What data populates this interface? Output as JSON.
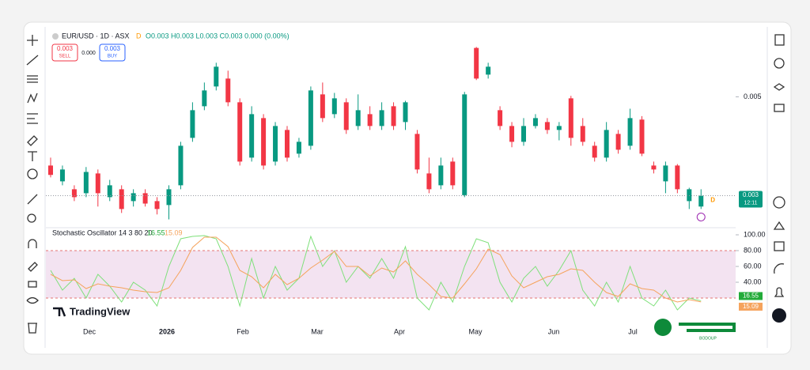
{
  "header": {
    "symbol": "EUR/USD · 1D · ASX",
    "flag": "D",
    "ohlc": "O0.003 H0.003 L0.003 C0.003 0.000 (0.00%)",
    "sell_price": "0.003",
    "sell": "SELL",
    "spread": "0.000",
    "buy_price": "0.003",
    "buy": "BUY"
  },
  "brand": "TradingView",
  "watermark": "BODOUP",
  "chart_data": [
    {
      "type": "candlestick",
      "up_color": "#089981",
      "down_color": "#f23645",
      "open": [
        0.00361,
        0.00329,
        0.00313,
        0.00305,
        0.00345,
        0.00297,
        0.00313,
        0.00289,
        0.00305,
        0.00289,
        0.00281,
        0.00321,
        0.00417,
        0.00481,
        0.00521,
        0.00537,
        0.00489,
        0.00377,
        0.00457,
        0.00369,
        0.00433,
        0.00385,
        0.00401,
        0.00505,
        0.00465,
        0.00489,
        0.00441,
        0.00465,
        0.00441,
        0.00481,
        0.00449,
        0.00425,
        0.00345,
        0.00321,
        0.00369,
        0.00301,
        0.00599,
        0.00545,
        0.00473,
        0.00441,
        0.00409,
        0.00441,
        0.00449,
        0.00433,
        0.00497,
        0.00441,
        0.00401,
        0.00377,
        0.00425,
        0.00401,
        0.00454,
        0.00361,
        0.00329,
        0.00361,
        0.00289,
        0.00278
      ],
      "high": [
        0.00377,
        0.00361,
        0.00321,
        0.00358,
        0.00353,
        0.00332,
        0.00321,
        0.00313,
        0.00313,
        0.00297,
        0.00321,
        0.00409,
        0.00489,
        0.00529,
        0.00569,
        0.00553,
        0.00497,
        0.00481,
        0.00465,
        0.00449,
        0.00441,
        0.00417,
        0.00521,
        0.00529,
        0.00508,
        0.00497,
        0.00505,
        0.00481,
        0.00489,
        0.00489,
        0.00492,
        0.00433,
        0.00377,
        0.00377,
        0.00377,
        0.0051,
        0.00601,
        0.00569,
        0.00481,
        0.00449,
        0.00457,
        0.00465,
        0.00457,
        0.00449,
        0.00502,
        0.00457,
        0.00409,
        0.00449,
        0.00433,
        0.00476,
        0.00461,
        0.00369,
        0.00369,
        0.00364,
        0.00316,
        0.00313
      ],
      "low": [
        0.00337,
        0.00321,
        0.00289,
        0.00297,
        0.00278,
        0.00289,
        0.00265,
        0.00278,
        0.00278,
        0.00262,
        0.00252,
        0.00313,
        0.00409,
        0.00473,
        0.00513,
        0.00481,
        0.00361,
        0.00369,
        0.00353,
        0.00361,
        0.00369,
        0.00377,
        0.00393,
        0.00449,
        0.00457,
        0.00425,
        0.00433,
        0.00433,
        0.00433,
        0.00433,
        0.00433,
        0.00345,
        0.00305,
        0.00313,
        0.00313,
        0.00297,
        0.00534,
        0.00537,
        0.00433,
        0.00398,
        0.00401,
        0.00436,
        0.00425,
        0.00412,
        0.00401,
        0.00401,
        0.00369,
        0.00369,
        0.00385,
        0.00393,
        0.0038,
        0.00345,
        0.00305,
        0.00305,
        0.00273,
        0.00273
      ],
      "close": [
        0.00342,
        0.00353,
        0.00297,
        0.00348,
        0.00305,
        0.00321,
        0.00273,
        0.00305,
        0.00284,
        0.00273,
        0.00313,
        0.00401,
        0.00473,
        0.00513,
        0.00561,
        0.00489,
        0.00369,
        0.00465,
        0.00361,
        0.00441,
        0.00377,
        0.00409,
        0.00513,
        0.00457,
        0.00497,
        0.00433,
        0.00473,
        0.00441,
        0.00473,
        0.00441,
        0.00489,
        0.00353,
        0.00313,
        0.00361,
        0.00321,
        0.00505,
        0.00537,
        0.00561,
        0.00441,
        0.00409,
        0.00441,
        0.00457,
        0.00433,
        0.00441,
        0.00417,
        0.00409,
        0.00377,
        0.00433,
        0.00393,
        0.00457,
        0.00385,
        0.00353,
        0.00361,
        0.00313,
        0.00313,
        0.003
      ],
      "ylim": [
        0.0024,
        0.0064
      ],
      "yticks": [
        0.005
      ],
      "x_labels": [
        "Dec",
        "2026",
        "Feb",
        "Mar",
        "Apr",
        "May",
        "Jun",
        "Jul"
      ],
      "countdown": "12:11",
      "marker": "D"
    },
    {
      "type": "line",
      "title": "Stochastic Oscillator 14 3 80 20",
      "series": [
        {
          "color": "#7ee07a",
          "values": [
            55,
            30,
            45,
            20,
            50,
            35,
            15,
            40,
            30,
            10,
            60,
            95,
            98,
            99,
            95,
            60,
            10,
            70,
            20,
            60,
            30,
            45,
            98,
            60,
            80,
            40,
            60,
            45,
            70,
            45,
            85,
            20,
            5,
            40,
            15,
            60,
            95,
            90,
            40,
            15,
            45,
            60,
            35,
            55,
            80,
            30,
            10,
            40,
            15,
            60,
            20,
            10,
            30,
            5,
            20,
            16.55
          ]
        },
        {
          "color": "#f5a35c",
          "values": [
            50,
            42,
            43,
            32,
            38,
            35,
            33,
            30,
            28,
            27,
            33,
            55,
            84,
            97,
            97,
            85,
            55,
            47,
            33,
            50,
            37,
            45,
            58,
            68,
            79,
            60,
            60,
            48,
            58,
            53,
            67,
            50,
            37,
            22,
            20,
            38,
            57,
            82,
            75,
            48,
            33,
            40,
            47,
            50,
            57,
            55,
            40,
            27,
            22,
            38,
            32,
            30,
            20,
            15,
            18,
            15.09
          ]
        }
      ],
      "band": [
        20,
        80
      ],
      "band_color": "#f3e3f1",
      "ylim": [
        -3,
        107
      ],
      "yticks": [
        {
          "value": 100,
          "label": "100.00"
        },
        {
          "value": 80,
          "label": "80.00"
        },
        {
          "value": 60,
          "label": "60.00"
        },
        {
          "value": 40,
          "label": "40.00"
        }
      ]
    }
  ]
}
